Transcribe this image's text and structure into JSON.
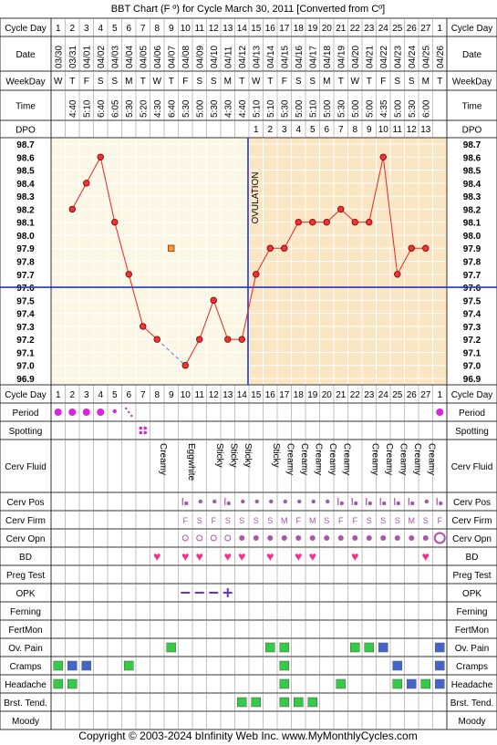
{
  "title": "BBT Chart (F º) for Cycle March 30, 2011  [Converted from Cº]",
  "footer": "Copyright © 2003-2024 bInfinity Web Inc.    www.MyMonthlyCycles.com",
  "labels": {
    "cycle_day": "Cycle Day",
    "date": "Date",
    "weekday": "WeekDay",
    "time": "Time",
    "dpo": "DPO",
    "period": "Period",
    "spotting": "Spotting",
    "cerv_fluid": "Cerv Fluid",
    "cerv_pos": "Cerv Pos",
    "cerv_firm": "Cerv Firm",
    "cerv_opn": "Cerv Opn",
    "bd": "BD",
    "preg_test": "Preg Test",
    "opk": "OPK",
    "ferning": "Ferning",
    "fertmon": "FertMon",
    "ov_pain": "Ov. Pain",
    "cramps": "Cramps",
    "headache": "Headache",
    "brst_tend": "Brst. Tend.",
    "moody": "Moody"
  },
  "ovulation_label": "OVULATION",
  "colors": {
    "grid": "#333333",
    "preov_bg": "#fbf7e4",
    "postov_bg": "#fbe6c4",
    "line": "#ee2222",
    "dot_fill": "#ee3333",
    "coverline": "#2233cc",
    "period": "#dd22dd",
    "symptom_green": "#33cc44",
    "symptom_blue": "#4466cc",
    "heart": "#ee3388",
    "opk": "#6633cc",
    "cervix": "#aa55aa"
  },
  "chart_data": {
    "type": "line",
    "cycle_days": [
      "1",
      "2",
      "3",
      "4",
      "5",
      "6",
      "7",
      "8",
      "9",
      "10",
      "11",
      "12",
      "13",
      "14",
      "15",
      "16",
      "17",
      "18",
      "19",
      "20",
      "21",
      "22",
      "23",
      "24",
      "25",
      "26",
      "27",
      "1"
    ],
    "dates": [
      "03/30",
      "03/31",
      "04/01",
      "04/02",
      "04/03",
      "04/04",
      "04/05",
      "04/06",
      "04/07",
      "04/08",
      "04/09",
      "04/10",
      "04/11",
      "04/12",
      "04/13",
      "04/14",
      "04/15",
      "04/16",
      "04/17",
      "04/18",
      "04/19",
      "04/20",
      "04/21",
      "04/22",
      "04/23",
      "04/24",
      "04/25",
      "04/26"
    ],
    "weekdays": [
      "W",
      "T",
      "F",
      "S",
      "S",
      "M",
      "T",
      "W",
      "T",
      "F",
      "S",
      "S",
      "M",
      "T",
      "W",
      "T",
      "F",
      "S",
      "S",
      "M",
      "T",
      "W",
      "T",
      "F",
      "S",
      "S",
      "M",
      "T"
    ],
    "times": [
      "",
      "4:40",
      "5:10",
      "6:40",
      "6:05",
      "5:30",
      "5:20",
      "4:30",
      "6:40",
      "5:30",
      "5:00",
      "5:30",
      "4:30",
      "4:40",
      "5:10",
      "5:10",
      "5:30",
      "5:00",
      "5:10",
      "5:00",
      "5:30",
      "5:00",
      "5:00",
      "4:35",
      "5:00",
      "5:30",
      "6:00",
      ""
    ],
    "dpo": [
      "",
      "",
      "",
      "",
      "",
      "",
      "",
      "",
      "",
      "",
      "",
      "",
      "",
      "",
      "1",
      "2",
      "3",
      "4",
      "5",
      "6",
      "7",
      "8",
      "9",
      "10",
      "11",
      "12",
      "13",
      ""
    ],
    "temps": [
      null,
      98.2,
      98.4,
      98.6,
      98.1,
      97.7,
      97.3,
      97.2,
      null,
      97.0,
      97.2,
      97.5,
      97.2,
      97.2,
      97.7,
      97.9,
      97.9,
      98.1,
      98.1,
      98.1,
      98.2,
      98.1,
      98.1,
      98.6,
      97.7,
      97.9,
      97.9,
      null
    ],
    "discarded": {
      "day_index": 8,
      "value": 97.9
    },
    "y_ticks": [
      "98.7",
      "98.6",
      "98.5",
      "98.4",
      "98.3",
      "98.2",
      "98.1",
      "98.0",
      "97.9",
      "97.8",
      "97.7",
      "97.6",
      "97.5",
      "97.4",
      "97.3",
      "97.2",
      "97.1",
      "97.0",
      "96.9"
    ],
    "ylim": [
      96.9,
      98.7
    ],
    "coverline": 97.6,
    "ovulation_day_index": 13,
    "period": [
      "heavy",
      "heavy",
      "heavy",
      "heavy",
      "light",
      "spot",
      "",
      "",
      "",
      "",
      "",
      "",
      "",
      "",
      "",
      "",
      "",
      "",
      "",
      "",
      "",
      "",
      "",
      "",
      "",
      "",
      "",
      "heavy"
    ],
    "spotting": [
      "",
      "",
      "",
      "",
      "",
      "",
      "spot",
      "",
      "",
      "",
      "",
      "",
      "",
      "",
      "",
      "",
      "",
      "",
      "",
      "",
      "",
      "",
      "",
      "",
      "",
      "",
      "",
      ""
    ],
    "cerv_fluid": [
      "",
      "",
      "",
      "",
      "",
      "",
      "",
      "Creamy",
      "",
      "Eggwhite",
      "",
      "Sticky",
      "Sticky",
      "Sticky",
      "",
      "Sticky",
      "Creamy",
      "Creamy",
      "Creamy",
      "Creamy",
      "Creamy",
      "",
      "Creamy",
      "Creamy",
      "Creamy",
      "Creamy",
      "Creamy",
      ""
    ],
    "cerv_pos": [
      "",
      "",
      "",
      "",
      "",
      "",
      "",
      "",
      "",
      "low",
      "mid",
      "mid",
      "low",
      "mid",
      "mid",
      "mid",
      "mid",
      "mid",
      "mid",
      "mid",
      "low",
      "low",
      "low",
      "low",
      "low",
      "low",
      "mid",
      "low"
    ],
    "cerv_firm": [
      "",
      "",
      "",
      "",
      "",
      "",
      "",
      "",
      "",
      "F",
      "S",
      "F",
      "S",
      "S",
      "S",
      "S",
      "M",
      "F",
      "M",
      "S",
      "F",
      "F",
      "S",
      "S",
      "S",
      "M",
      "S",
      "F"
    ],
    "cerv_opn": [
      "",
      "",
      "",
      "",
      "",
      "",
      "",
      "",
      "",
      "closed",
      "closed",
      "closed",
      "closed",
      "medium",
      "medium",
      "medium",
      "medium",
      "medium",
      "medium",
      "medium",
      "medium",
      "medium",
      "medium",
      "medium",
      "medium",
      "medium",
      "medium",
      "open"
    ],
    "bd": [
      false,
      false,
      false,
      false,
      false,
      false,
      false,
      true,
      false,
      true,
      true,
      false,
      true,
      true,
      false,
      true,
      false,
      true,
      true,
      false,
      false,
      true,
      false,
      false,
      false,
      false,
      true,
      false
    ],
    "opk": [
      "",
      "",
      "",
      "",
      "",
      "",
      "",
      "",
      "",
      "neg",
      "neg",
      "neg",
      "pos",
      "",
      "",
      "",
      "",
      "",
      "",
      "",
      "",
      "",
      "",
      "",
      "",
      "",
      "",
      ""
    ],
    "ov_pain": [
      "",
      "",
      "",
      "",
      "",
      "",
      "",
      "",
      "green",
      "",
      "",
      "",
      "",
      "",
      "",
      "green",
      "green",
      "",
      "",
      "",
      "",
      "green",
      "green",
      "blue",
      "",
      "",
      "",
      "blue"
    ],
    "cramps": [
      "green",
      "blue",
      "blue",
      "",
      "",
      "green",
      "",
      "",
      "",
      "",
      "",
      "",
      "",
      "",
      "",
      "",
      "green",
      "",
      "",
      "",
      "",
      "",
      "",
      "",
      "blue",
      "",
      "",
      "blue"
    ],
    "headache": [
      "green",
      "green",
      "",
      "",
      "",
      "",
      "",
      "",
      "",
      "",
      "",
      "",
      "",
      "",
      "",
      "",
      "green",
      "",
      "",
      "",
      "green",
      "",
      "",
      "",
      "green",
      "blue",
      "green",
      "blue"
    ],
    "brst_tend": [
      "",
      "",
      "",
      "",
      "",
      "",
      "",
      "",
      "",
      "",
      "",
      "",
      "",
      "green",
      "green",
      "",
      "green",
      "green",
      "green",
      "",
      "",
      "",
      "",
      "",
      "",
      "",
      "",
      ""
    ],
    "moody": [
      "",
      "",
      "",
      "",
      "",
      "",
      "",
      "",
      "",
      "",
      "",
      "",
      "",
      "",
      "",
      "",
      "",
      "",
      "",
      "",
      "",
      "",
      "",
      "",
      "",
      "",
      "",
      ""
    ]
  }
}
